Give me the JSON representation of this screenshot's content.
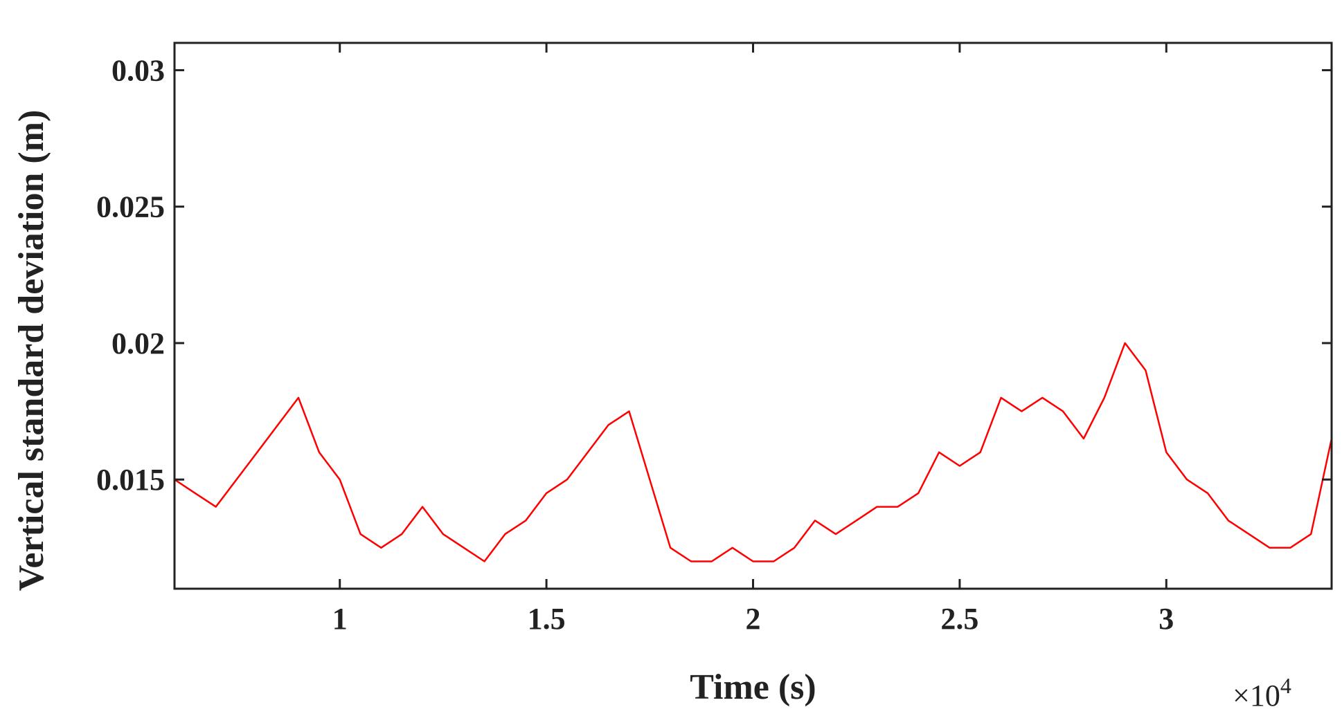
{
  "chart_data": {
    "type": "line",
    "title": "",
    "xlabel": "Time (s)",
    "ylabel": "Vertical standard deviation (m)",
    "x_multiplier_label": "×10",
    "x_multiplier_exp": "4",
    "xlim": [
      0.6,
      3.4
    ],
    "ylim": [
      0.011,
      0.031
    ],
    "x_ticks": [
      1,
      1.5,
      2,
      2.5,
      3
    ],
    "x_tick_labels": [
      "1",
      "1.5",
      "2",
      "2.5",
      "3"
    ],
    "y_ticks": [
      0.015,
      0.02,
      0.025,
      0.03
    ],
    "y_tick_labels": [
      "0.015",
      "0.02",
      "0.025",
      "0.03"
    ],
    "grid": false,
    "line_color": "#ff0000",
    "series": [
      {
        "values_note": "x in units of 10^4 s, y in m",
        "x": [
          0.6,
          0.65,
          0.7,
          0.75,
          0.8,
          0.85,
          0.9,
          0.95,
          1.0,
          1.05,
          1.1,
          1.15,
          1.2,
          1.25,
          1.3,
          1.35,
          1.4,
          1.45,
          1.5,
          1.55,
          1.6,
          1.65,
          1.7,
          1.75,
          1.8,
          1.85,
          1.9,
          1.95,
          2.0,
          2.05,
          2.1,
          2.15,
          2.2,
          2.25,
          2.3,
          2.35,
          2.4,
          2.45,
          2.5,
          2.55,
          2.6,
          2.65,
          2.7,
          2.75,
          2.8,
          2.85,
          2.9,
          2.95,
          3.0,
          3.05,
          3.1,
          3.15,
          3.2,
          3.25,
          3.3,
          3.35,
          3.4
        ],
        "y": [
          0.015,
          0.0145,
          0.014,
          0.015,
          0.016,
          0.017,
          0.018,
          0.016,
          0.015,
          0.013,
          0.0125,
          0.013,
          0.014,
          0.013,
          0.0125,
          0.012,
          0.013,
          0.0135,
          0.0145,
          0.015,
          0.016,
          0.017,
          0.0175,
          0.015,
          0.0125,
          0.012,
          0.012,
          0.0125,
          0.012,
          0.012,
          0.0125,
          0.0135,
          0.013,
          0.0135,
          0.014,
          0.014,
          0.0145,
          0.016,
          0.0155,
          0.016,
          0.018,
          0.0175,
          0.018,
          0.0175,
          0.0165,
          0.018,
          0.02,
          0.019,
          0.016,
          0.015,
          0.0145,
          0.0135,
          0.013,
          0.0125,
          0.0125,
          0.013,
          0.0165
        ]
      }
    ]
  }
}
